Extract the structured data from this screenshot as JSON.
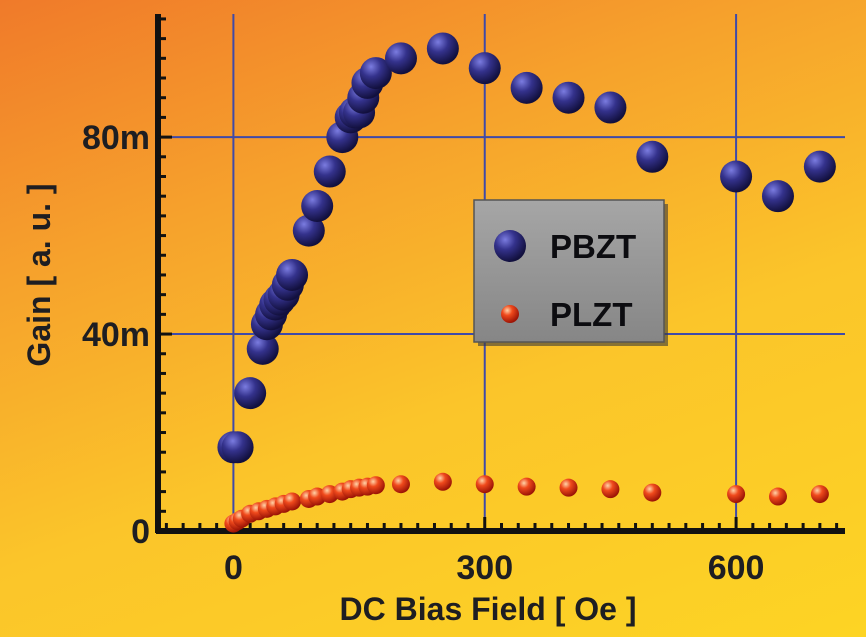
{
  "chart_data": {
    "type": "scatter",
    "title": "",
    "xlabel": "DC Bias Field  [ Oe ]",
    "ylabel": "Gain [ a. u. ]",
    "xlim": [
      -90,
      730
    ],
    "ylim": [
      0,
      105
    ],
    "xticks": [
      0,
      300,
      600
    ],
    "xtick_labels": [
      "0",
      "300",
      "600"
    ],
    "yticks": [
      0,
      40,
      80
    ],
    "ytick_labels": [
      "0",
      "40m",
      "80m"
    ],
    "grid": true,
    "legend_position": "center-right",
    "series": [
      {
        "name": "PBZT",
        "color": "#2d2a7c",
        "x": [
          0,
          5,
          20,
          35,
          40,
          45,
          50,
          55,
          60,
          65,
          70,
          90,
          100,
          115,
          130,
          140,
          145,
          150,
          155,
          160,
          170,
          200,
          250,
          300,
          350,
          400,
          450,
          500,
          600,
          650,
          700
        ],
        "y": [
          17,
          17,
          28,
          37,
          42,
          44,
          46,
          47,
          48,
          50,
          52,
          61,
          66,
          73,
          80,
          84,
          85,
          85,
          88,
          91,
          93,
          96,
          98,
          94,
          90,
          88,
          86,
          76,
          72,
          68,
          74
        ]
      },
      {
        "name": "PLZT",
        "color": "#e8321a",
        "x": [
          0,
          5,
          10,
          20,
          30,
          40,
          50,
          60,
          70,
          90,
          100,
          115,
          130,
          140,
          150,
          160,
          170,
          200,
          250,
          300,
          350,
          400,
          450,
          500,
          600,
          650,
          700
        ],
        "y": [
          1.5,
          2,
          2.5,
          3.5,
          4,
          4.5,
          5,
          5.5,
          6,
          6.5,
          7,
          7.5,
          8,
          8.5,
          8.8,
          9,
          9.3,
          9.5,
          10,
          9.5,
          9,
          8.8,
          8.5,
          7.8,
          7.5,
          7,
          7.5
        ]
      }
    ]
  }
}
